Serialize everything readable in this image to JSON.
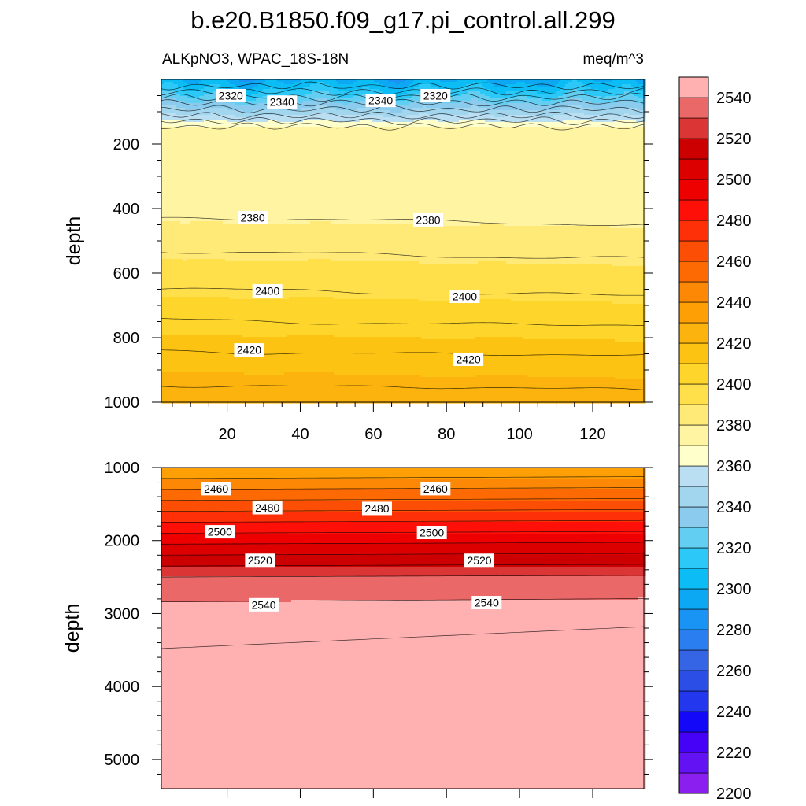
{
  "chart_data": {
    "type": "contour",
    "title": "b.e20.B1850.f09_g17.pi_control.all.299",
    "variable": "ALKpNO3, WPAC_18S-18N",
    "units": "meq/m^3",
    "colorbar": {
      "levels": [
        2200,
        2210,
        2220,
        2230,
        2240,
        2250,
        2260,
        2270,
        2280,
        2290,
        2300,
        2310,
        2320,
        2330,
        2340,
        2350,
        2360,
        2370,
        2380,
        2390,
        2400,
        2410,
        2420,
        2430,
        2440,
        2450,
        2460,
        2470,
        2480,
        2490,
        2500,
        2510,
        2520,
        2530,
        2540,
        2550
      ],
      "tick_labels": [
        "2200",
        "2220",
        "2240",
        "2260",
        "2280",
        "2300",
        "2320",
        "2340",
        "2360",
        "2380",
        "2400",
        "2420",
        "2440",
        "2460",
        "2480",
        "2500",
        "2520",
        "2540"
      ],
      "colors": [
        "#a0fa00",
        "#8a1ff0",
        "#6212f3",
        "#4602f6",
        "#1408f8",
        "#2337ee",
        "#2a4ee6",
        "#3564e4",
        "#2a7ef0",
        "#1994f4",
        "#0ca8f4",
        "#0cbcf4",
        "#2cc8f8",
        "#62cef2",
        "#8acbee",
        "#a2d6ef",
        "#badff2",
        "#ffffcc",
        "#fff4a2",
        "#ffea78",
        "#ffe04a",
        "#fed52a",
        "#fdc312",
        "#fdb30e",
        "#fd9f05",
        "#fd8805",
        "#fd6a04",
        "#fd4e05",
        "#fd3008",
        "#fe1008",
        "#ee0000",
        "#dc0000",
        "#cc0000",
        "#dc3535",
        "#ea6868",
        "#ffb0b0"
      ]
    },
    "panels": [
      {
        "name": "upper",
        "ylabel": "depth",
        "ylim": [
          0,
          1000
        ],
        "xlim": [
          2,
          134
        ],
        "xticks": [
          20,
          40,
          60,
          80,
          100,
          120
        ],
        "yticks": [
          200,
          400,
          600,
          800,
          1000
        ],
        "contour_labels": [
          {
            "text": "2320",
            "x": 21,
            "y": 50
          },
          {
            "text": "2340",
            "x": 35,
            "y": 70
          },
          {
            "text": "2340",
            "x": 62,
            "y": 65
          },
          {
            "text": "2320",
            "x": 77,
            "y": 50
          },
          {
            "text": "2380",
            "x": 27,
            "y": 428
          },
          {
            "text": "2380",
            "x": 75,
            "y": 435
          },
          {
            "text": "2400",
            "x": 31,
            "y": 655
          },
          {
            "text": "2400",
            "x": 85,
            "y": 672
          },
          {
            "text": "2420",
            "x": 26,
            "y": 838
          },
          {
            "text": "2420",
            "x": 86,
            "y": 867
          }
        ]
      },
      {
        "name": "lower",
        "ylabel": "depth",
        "ylim": [
          1000,
          5400
        ],
        "yticks": [
          1000,
          2000,
          3000,
          4000,
          5000
        ],
        "contour_labels": [
          {
            "text": "2460",
            "x": 17,
            "y": 1290
          },
          {
            "text": "2460",
            "x": 77,
            "y": 1290
          },
          {
            "text": "2480",
            "x": 31,
            "y": 1550
          },
          {
            "text": "2480",
            "x": 61,
            "y": 1560
          },
          {
            "text": "2500",
            "x": 18,
            "y": 1880
          },
          {
            "text": "2500",
            "x": 76,
            "y": 1890
          },
          {
            "text": "2520",
            "x": 29,
            "y": 2270
          },
          {
            "text": "2520",
            "x": 89,
            "y": 2270
          },
          {
            "text": "2540",
            "x": 30,
            "y": 2880
          },
          {
            "text": "2540",
            "x": 91,
            "y": 2850
          }
        ]
      }
    ]
  }
}
